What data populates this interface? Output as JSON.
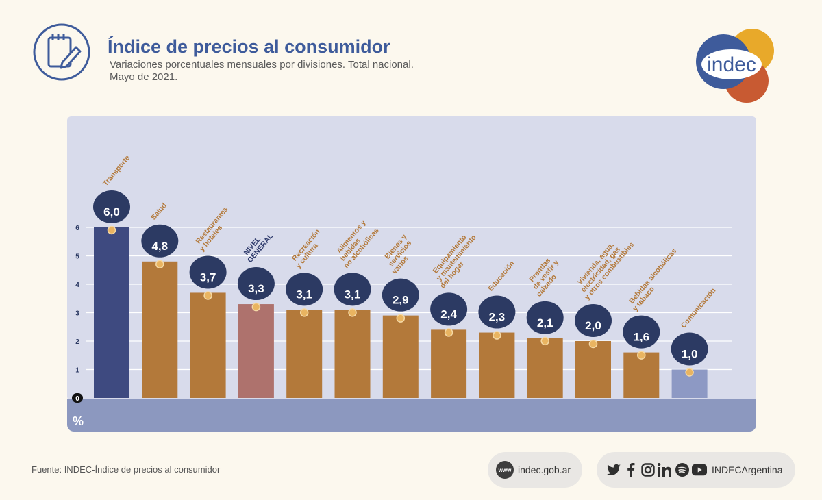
{
  "header": {
    "title": "Índice de precios al consumidor",
    "subtitle_line1": "Variaciones porcentuales mensuales por divisiones. Total nacional.",
    "subtitle_line2": "Mayo de 2021."
  },
  "logo": {
    "text": "indec",
    "colors": [
      "#e8a92a",
      "#3e5b9b",
      "#c85a32"
    ]
  },
  "chart_data": {
    "type": "bar",
    "categories": [
      "Transporte",
      "Salud",
      "Restaurantes\ny hoteles",
      "NIVEL\nGENERAL",
      "Recreación\ny cultura",
      "Alimentos y\nbebidas\nno alcohólicas",
      "Bienes y\nservicios\nvarios",
      "Equipamiento\ny mantenimiento\ndel hogar",
      "Educación",
      "Prendas\nde vestir y\ncalzado",
      "Vivienda, agua,\nelectricidad, gas\ny otros combustibles",
      "Bebidas alcohólicas\ny tabaco",
      "Comunicación"
    ],
    "values": [
      6.0,
      4.8,
      3.7,
      3.3,
      3.1,
      3.1,
      2.9,
      2.4,
      2.3,
      2.1,
      2.0,
      1.6,
      1.0
    ],
    "value_labels": [
      "6,0",
      "4,8",
      "3,7",
      "3,3",
      "3,1",
      "3,1",
      "2,9",
      "2,4",
      "2,3",
      "2,1",
      "2,0",
      "1,6",
      "1,0"
    ],
    "y_ticks": [
      "0",
      "1",
      "2",
      "3",
      "4",
      "5",
      "6"
    ],
    "ylim": [
      0,
      6
    ],
    "ylabel": "%",
    "grid": true,
    "colors": {
      "default": "#b3793a",
      "Transporte": "#3e4a80",
      "NIVEL\nGENERAL": "#ae726d",
      "Comunicación": "#8d99c4",
      "label": "#b3793a",
      "label_general": "#2f3b6c",
      "bubble": "#2c3a63",
      "plot_bg": "#d8dbeb",
      "axis_band": "#8c98bf"
    }
  },
  "footer": {
    "source": "Fuente: INDEC-Índice de precios al consumidor",
    "www_badge": "www",
    "website": "indec.gob.ar",
    "social_handle": "INDECArgentina",
    "social_icons": [
      "twitter-icon",
      "facebook-icon",
      "instagram-icon",
      "linkedin-icon",
      "spotify-icon",
      "youtube-icon"
    ]
  }
}
